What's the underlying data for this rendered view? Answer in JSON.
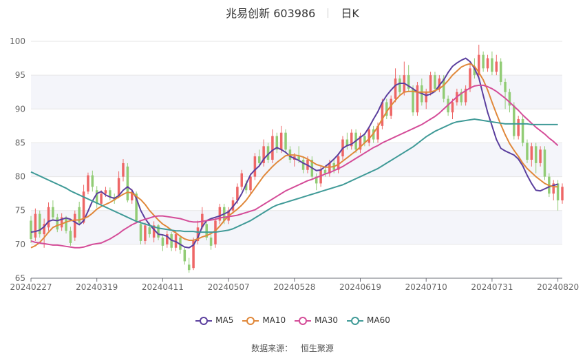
{
  "header": {
    "title": "兆易创新 603986",
    "period": "日K"
  },
  "source": {
    "label": "数据来源：",
    "provider": "恒生聚源"
  },
  "colors": {
    "up": "#ee6666",
    "down": "#91cc75",
    "grid": "#e6e6e6",
    "band": "#f4f5fa",
    "axis_text": "#666666"
  },
  "chart_data": {
    "type": "candlestick",
    "title": "兆易创新 603986",
    "ylim": [
      65,
      100
    ],
    "yticks": [
      65,
      70,
      75,
      80,
      85,
      90,
      95,
      100
    ],
    "xlabels": [
      "20240227",
      "20240319",
      "20240411",
      "20240507",
      "20240528",
      "20240619",
      "20240710",
      "20240731",
      "20240820"
    ],
    "x_index_of_labels": [
      0,
      15,
      30,
      45,
      60,
      75,
      90,
      105,
      120
    ],
    "legend": [
      {
        "name": "MA5",
        "color": "#5b3f9e"
      },
      {
        "name": "MA10",
        "color": "#e0883a"
      },
      {
        "name": "MA30",
        "color": "#d44c98"
      },
      {
        "name": "MA60",
        "color": "#3f9a97"
      }
    ],
    "candles": [
      [
        73.5,
        70.8,
        74.2,
        70.2
      ],
      [
        71.0,
        74.5,
        75.3,
        70.5
      ],
      [
        74.5,
        71.5,
        75.0,
        71.0
      ],
      [
        71.5,
        73.0,
        73.8,
        69.5
      ],
      [
        72.5,
        75.5,
        76.2,
        72.0
      ],
      [
        75.5,
        74.0,
        76.5,
        73.6
      ],
      [
        74.0,
        72.2,
        74.5,
        71.8
      ],
      [
        72.5,
        74.0,
        74.6,
        72.0
      ],
      [
        74.0,
        72.0,
        74.2,
        71.6
      ],
      [
        72.0,
        70.2,
        72.6,
        69.8
      ],
      [
        71.0,
        74.5,
        75.0,
        70.5
      ],
      [
        75.5,
        73.2,
        76.3,
        72.8
      ],
      [
        73.2,
        77.8,
        78.8,
        73.0
      ],
      [
        77.8,
        80.2,
        80.6,
        77.4
      ],
      [
        80.2,
        78.5,
        80.9,
        77.8
      ],
      [
        78.0,
        76.0,
        78.6,
        75.4
      ],
      [
        76.0,
        77.5,
        78.0,
        75.5
      ],
      [
        77.5,
        78.0,
        78.5,
        77.0
      ],
      [
        78.0,
        77.0,
        78.4,
        76.5
      ],
      [
        77.0,
        76.5,
        77.5,
        76.0
      ],
      [
        77.0,
        79.8,
        80.8,
        76.8
      ],
      [
        80.0,
        82.0,
        82.6,
        79.3
      ],
      [
        81.5,
        76.5,
        82.0,
        76.2
      ],
      [
        76.5,
        77.8,
        78.2,
        76.0
      ],
      [
        77.5,
        73.5,
        77.8,
        73.2
      ],
      [
        73.0,
        70.5,
        73.5,
        70.0
      ],
      [
        70.5,
        72.8,
        73.2,
        70.0
      ],
      [
        72.5,
        71.5,
        73.2,
        71.0
      ],
      [
        71.0,
        72.8,
        73.4,
        70.3
      ],
      [
        72.8,
        71.0,
        73.0,
        70.6
      ],
      [
        71.0,
        69.8,
        71.5,
        69.0
      ],
      [
        70.0,
        71.5,
        72.0,
        69.5
      ],
      [
        71.5,
        69.5,
        71.8,
        69.0
      ],
      [
        69.5,
        71.5,
        72.0,
        69.0
      ],
      [
        71.0,
        69.2,
        71.4,
        68.6
      ],
      [
        69.2,
        67.5,
        69.5,
        67.0
      ],
      [
        67.0,
        66.2,
        68.0,
        65.8
      ],
      [
        66.5,
        70.5,
        71.0,
        66.2
      ],
      [
        70.5,
        72.5,
        73.5,
        70.0
      ],
      [
        72.5,
        74.5,
        75.5,
        72.2
      ],
      [
        73.0,
        71.0,
        73.5,
        70.6
      ],
      [
        71.0,
        69.8,
        71.5,
        69.2
      ],
      [
        70.0,
        73.5,
        74.0,
        69.5
      ],
      [
        73.5,
        75.5,
        76.0,
        73.0
      ],
      [
        75.5,
        73.5,
        76.0,
        73.0
      ],
      [
        73.5,
        75.0,
        75.5,
        73.0
      ],
      [
        75.0,
        76.5,
        77.0,
        74.5
      ],
      [
        76.5,
        78.5,
        79.0,
        76.0
      ],
      [
        78.5,
        80.5,
        81.0,
        78.0
      ],
      [
        79.0,
        78.0,
        79.5,
        77.5
      ],
      [
        78.0,
        80.0,
        80.5,
        77.5
      ],
      [
        80.0,
        83.0,
        83.5,
        79.5
      ],
      [
        83.0,
        82.0,
        84.0,
        81.5
      ],
      [
        82.0,
        84.5,
        85.5,
        81.5
      ],
      [
        84.5,
        82.5,
        85.0,
        82.0
      ],
      [
        82.5,
        86.0,
        87.0,
        82.0
      ],
      [
        86.0,
        84.0,
        86.5,
        83.5
      ],
      [
        84.0,
        86.5,
        87.5,
        83.5
      ],
      [
        86.5,
        84.0,
        87.0,
        83.5
      ],
      [
        84.0,
        82.5,
        84.5,
        82.0
      ],
      [
        82.5,
        83.0,
        83.5,
        81.5
      ],
      [
        83.0,
        82.5,
        84.5,
        82.0
      ],
      [
        82.5,
        81.0,
        83.0,
        80.5
      ],
      [
        81.0,
        82.5,
        83.0,
        80.5
      ],
      [
        82.5,
        80.0,
        83.0,
        79.5
      ],
      [
        80.0,
        79.0,
        80.5,
        78.0
      ],
      [
        79.0,
        81.0,
        81.5,
        78.5
      ],
      [
        81.0,
        80.5,
        81.5,
        80.0
      ],
      [
        80.5,
        82.0,
        82.5,
        80.0
      ],
      [
        82.0,
        81.0,
        82.5,
        80.5
      ],
      [
        81.0,
        83.0,
        83.5,
        80.5
      ],
      [
        83.0,
        85.5,
        86.0,
        82.5
      ],
      [
        85.5,
        84.5,
        86.5,
        84.0
      ],
      [
        84.5,
        86.5,
        87.0,
        84.0
      ],
      [
        86.5,
        84.0,
        87.0,
        83.5
      ],
      [
        84.0,
        86.0,
        86.5,
        83.5
      ],
      [
        86.0,
        85.0,
        86.5,
        84.5
      ],
      [
        85.0,
        87.0,
        87.5,
        84.5
      ],
      [
        87.0,
        85.5,
        87.5,
        85.0
      ],
      [
        85.5,
        87.5,
        88.0,
        85.0
      ],
      [
        87.5,
        91.0,
        91.5,
        87.0
      ],
      [
        91.0,
        89.0,
        91.5,
        88.5
      ],
      [
        89.0,
        91.5,
        92.0,
        88.5
      ],
      [
        91.5,
        94.5,
        96.0,
        91.0
      ],
      [
        94.5,
        92.5,
        95.0,
        92.0
      ],
      [
        92.5,
        95.0,
        97.0,
        92.0
      ],
      [
        95.0,
        93.0,
        96.5,
        92.5
      ],
      [
        93.0,
        89.5,
        93.5,
        89.0
      ],
      [
        89.5,
        93.5,
        94.0,
        89.0
      ],
      [
        93.5,
        91.0,
        94.5,
        90.5
      ],
      [
        91.0,
        92.5,
        93.0,
        90.0
      ],
      [
        92.5,
        95.0,
        95.5,
        92.0
      ],
      [
        95.0,
        93.0,
        95.5,
        92.5
      ],
      [
        93.0,
        94.5,
        95.0,
        92.5
      ],
      [
        94.5,
        91.5,
        95.0,
        91.0
      ],
      [
        91.5,
        89.5,
        92.0,
        89.0
      ],
      [
        89.5,
        91.0,
        91.5,
        88.5
      ],
      [
        91.0,
        92.5,
        93.0,
        90.5
      ],
      [
        92.5,
        91.0,
        93.0,
        90.5
      ],
      [
        91.0,
        93.0,
        93.5,
        90.5
      ],
      [
        93.0,
        96.0,
        97.0,
        92.5
      ],
      [
        96.0,
        95.0,
        97.5,
        94.5
      ],
      [
        95.0,
        98.0,
        99.5,
        94.5
      ],
      [
        98.0,
        96.0,
        98.5,
        95.5
      ],
      [
        96.0,
        97.5,
        98.0,
        95.5
      ],
      [
        97.5,
        95.5,
        98.5,
        95.0
      ],
      [
        95.5,
        97.0,
        98.0,
        95.0
      ],
      [
        97.0,
        94.0,
        97.5,
        93.5
      ],
      [
        94.0,
        92.5,
        94.5,
        90.0
      ],
      [
        92.5,
        90.5,
        93.0,
        89.5
      ],
      [
        90.5,
        86.0,
        91.0,
        85.5
      ],
      [
        86.0,
        88.5,
        89.0,
        85.5
      ],
      [
        88.5,
        85.0,
        89.0,
        84.5
      ],
      [
        85.0,
        82.5,
        85.5,
        82.0
      ],
      [
        82.5,
        84.5,
        85.0,
        81.5
      ],
      [
        84.5,
        82.0,
        85.0,
        80.5
      ],
      [
        82.0,
        84.0,
        84.5,
        81.5
      ],
      [
        84.0,
        80.0,
        84.5,
        79.5
      ],
      [
        80.0,
        77.5,
        80.5,
        77.0
      ],
      [
        77.5,
        79.0,
        79.5,
        76.5
      ],
      [
        79.0,
        76.5,
        79.5,
        75.0
      ],
      [
        76.5,
        78.5,
        79.0,
        76.0
      ]
    ],
    "series": [
      {
        "name": "MA5",
        "values": [
          71.8,
          71.9,
          72.1,
          72.6,
          73.4,
          73.6,
          73.5,
          73.7,
          73.9,
          73.7,
          73.3,
          72.9,
          73.5,
          74.9,
          76.4,
          77.5,
          77.8,
          77.3,
          77.0,
          76.8,
          77.2,
          78.0,
          78.5,
          78.0,
          76.8,
          75.0,
          73.8,
          72.9,
          72.2,
          71.5,
          71.4,
          71.2,
          70.6,
          70.4,
          70.0,
          69.6,
          69.5,
          69.9,
          71.0,
          72.6,
          73.5,
          73.8,
          74.0,
          74.2,
          74.5,
          74.8,
          75.6,
          76.4,
          77.5,
          78.9,
          80.3,
          81.0,
          81.6,
          82.6,
          83.3,
          83.9,
          84.3,
          84.0,
          83.6,
          83.0,
          82.7,
          82.4,
          82.0,
          81.7,
          81.3,
          80.9,
          81.0,
          81.5,
          82.0,
          82.6,
          83.3,
          84.2,
          84.6,
          84.8,
          85.3,
          85.8,
          86.3,
          87.3,
          88.5,
          89.6,
          91.0,
          92.0,
          92.8,
          93.5,
          93.8,
          93.8,
          93.4,
          93.0,
          92.5,
          92.3,
          92.0,
          92.2,
          92.6,
          93.5,
          94.3,
          95.4,
          96.3,
          96.8,
          97.2,
          97.5,
          97.0,
          96.0,
          94.6,
          92.0,
          89.5,
          87.5,
          85.5,
          84.2,
          83.8,
          83.5,
          83.2,
          82.6,
          81.6,
          80.2,
          79.0,
          78.0,
          77.9,
          78.2,
          78.5,
          78.7,
          78.9
        ]
      },
      {
        "name": "MA10",
        "values": [
          69.5,
          69.8,
          70.3,
          71.0,
          71.8,
          72.5,
          72.8,
          73.0,
          73.3,
          73.5,
          73.6,
          73.6,
          73.8,
          74.1,
          74.6,
          75.2,
          75.6,
          75.9,
          76.2,
          76.6,
          77.0,
          77.4,
          77.7,
          77.6,
          77.1,
          76.6,
          75.9,
          75.0,
          74.3,
          73.6,
          73.0,
          72.6,
          72.1,
          71.7,
          71.2,
          70.8,
          70.6,
          70.6,
          70.8,
          71.1,
          71.3,
          71.6,
          72.0,
          72.7,
          73.5,
          74.2,
          74.7,
          75.2,
          75.8,
          76.5,
          77.4,
          78.3,
          79.2,
          80.1,
          80.8,
          81.5,
          82.1,
          82.6,
          83.1,
          83.2,
          83.2,
          83.1,
          82.9,
          82.6,
          82.2,
          81.8,
          81.6,
          81.4,
          81.4,
          81.5,
          81.8,
          82.3,
          82.8,
          83.3,
          83.8,
          84.4,
          85.0,
          85.6,
          86.4,
          87.4,
          88.5,
          89.6,
          90.5,
          91.3,
          92.0,
          92.5,
          92.6,
          92.6,
          92.5,
          92.5,
          92.5,
          92.5,
          92.7,
          93.0,
          93.5,
          94.2,
          95.0,
          95.6,
          96.2,
          96.5,
          96.7,
          96.3,
          95.4,
          94.3,
          92.8,
          91.0,
          89.3,
          87.7,
          86.2,
          84.9,
          83.9,
          83.0,
          82.0,
          81.2,
          80.6,
          80.0,
          79.5,
          79.0,
          78.7,
          78.5,
          78.5
        ]
      },
      {
        "name": "MA30",
        "values": [
          70.5,
          70.3,
          70.2,
          70.1,
          70.0,
          69.9,
          69.9,
          69.8,
          69.7,
          69.6,
          69.5,
          69.5,
          69.6,
          69.8,
          70.0,
          70.1,
          70.2,
          70.5,
          70.8,
          71.2,
          71.6,
          72.1,
          72.5,
          72.9,
          73.2,
          73.5,
          73.7,
          73.9,
          74.1,
          74.2,
          74.2,
          74.1,
          74.0,
          73.9,
          73.8,
          73.6,
          73.4,
          73.3,
          73.3,
          73.4,
          73.5,
          73.6,
          73.7,
          73.9,
          74.0,
          74.1,
          74.2,
          74.3,
          74.5,
          74.7,
          74.9,
          75.1,
          75.5,
          75.9,
          76.3,
          76.7,
          77.1,
          77.5,
          77.9,
          78.2,
          78.5,
          78.8,
          79.1,
          79.4,
          79.6,
          79.9,
          80.1,
          80.4,
          80.6,
          80.9,
          81.2,
          81.5,
          81.9,
          82.3,
          82.7,
          83.1,
          83.5,
          83.9,
          84.3,
          84.6,
          85.0,
          85.3,
          85.6,
          85.9,
          86.2,
          86.5,
          86.8,
          87.1,
          87.4,
          87.7,
          88.1,
          88.5,
          88.9,
          89.4,
          90.0,
          90.6,
          91.2,
          91.8,
          92.3,
          92.7,
          93.1,
          93.4,
          93.5,
          93.5,
          93.3,
          93.0,
          92.6,
          92.1,
          91.6,
          91.0,
          90.4,
          89.8,
          89.1,
          88.5,
          87.9,
          87.3,
          86.8,
          86.3,
          85.7,
          85.2,
          84.6
        ]
      },
      {
        "name": "MA60",
        "values": [
          80.7,
          80.4,
          80.1,
          79.8,
          79.5,
          79.2,
          78.9,
          78.6,
          78.3,
          77.9,
          77.6,
          77.3,
          77.0,
          76.7,
          76.4,
          76.1,
          75.8,
          75.5,
          75.2,
          74.9,
          74.6,
          74.3,
          74.0,
          73.7,
          73.4,
          73.2,
          73.0,
          72.8,
          72.6,
          72.4,
          72.3,
          72.2,
          72.1,
          72.0,
          72.0,
          71.9,
          71.9,
          71.9,
          71.8,
          71.8,
          71.8,
          71.8,
          71.8,
          71.9,
          72.0,
          72.1,
          72.3,
          72.6,
          72.9,
          73.2,
          73.5,
          73.9,
          74.3,
          74.7,
          75.1,
          75.5,
          75.8,
          76.0,
          76.2,
          76.4,
          76.6,
          76.8,
          77.0,
          77.2,
          77.4,
          77.6,
          77.8,
          78.0,
          78.2,
          78.4,
          78.6,
          78.8,
          79.1,
          79.4,
          79.7,
          80.0,
          80.3,
          80.6,
          80.9,
          81.2,
          81.6,
          82.0,
          82.4,
          82.8,
          83.2,
          83.6,
          84.0,
          84.4,
          84.9,
          85.4,
          85.9,
          86.3,
          86.7,
          87.0,
          87.3,
          87.6,
          87.9,
          88.1,
          88.2,
          88.3,
          88.4,
          88.5,
          88.4,
          88.3,
          88.2,
          88.1,
          88.0,
          87.9,
          87.8,
          87.8,
          87.8,
          87.8,
          87.8,
          87.8,
          87.7,
          87.7,
          87.7,
          87.7,
          87.7,
          87.7,
          87.7
        ]
      }
    ]
  }
}
